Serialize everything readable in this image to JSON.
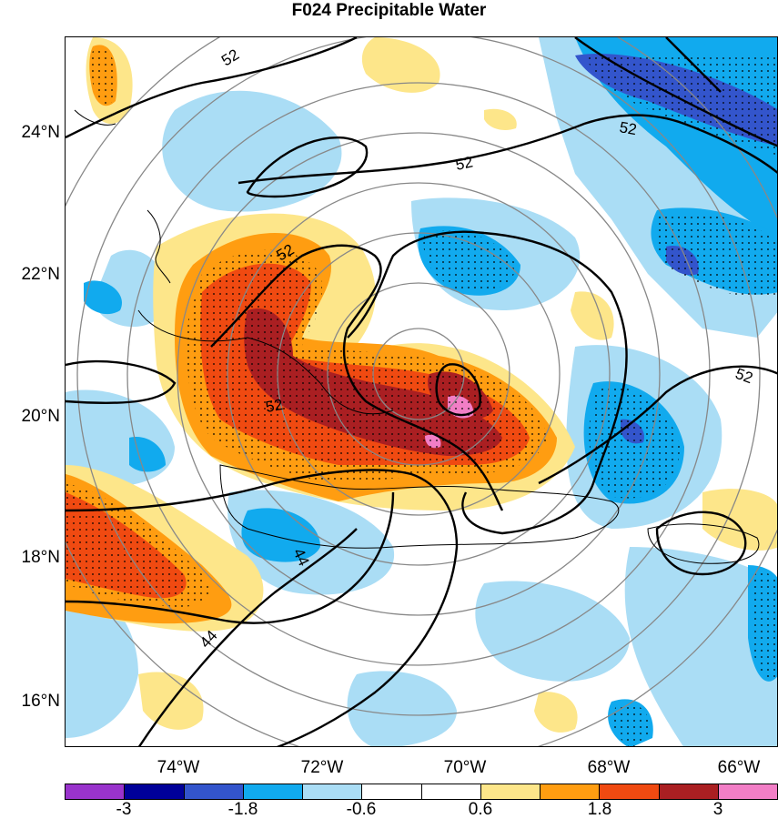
{
  "title": "F024 Precipitable Water",
  "lat_labels": [
    "24°N",
    "22°N",
    "20°N",
    "18°N",
    "16°N"
  ],
  "lon_labels": [
    "74°W",
    "72°W",
    "70°W",
    "68°W",
    "66°W"
  ],
  "contour_labels": [
    "52",
    "52",
    "52",
    "52",
    "52",
    "52",
    "44",
    "44"
  ],
  "colorbar": {
    "labels": [
      "-3",
      "-1.8",
      "-0.6",
      "0.6",
      "1.8",
      "3"
    ],
    "colors": [
      "#9933cc",
      "#000099",
      "#3355cc",
      "#11aaee",
      "#aaddf5",
      "#ffffff",
      "#ffffff",
      "#fde68a",
      "#ff9d11",
      "#f04a11",
      "#aa1f22",
      "#f27ec6"
    ]
  },
  "colors": {
    "light_blue": "#aaddf5",
    "blue": "#11aaee",
    "dark_blue": "#3355cc",
    "light_yellow": "#fde68a",
    "orange": "#ff9d11",
    "red_orange": "#f04a11",
    "dark_red": "#aa1f22",
    "pink": "#f27ec6"
  }
}
